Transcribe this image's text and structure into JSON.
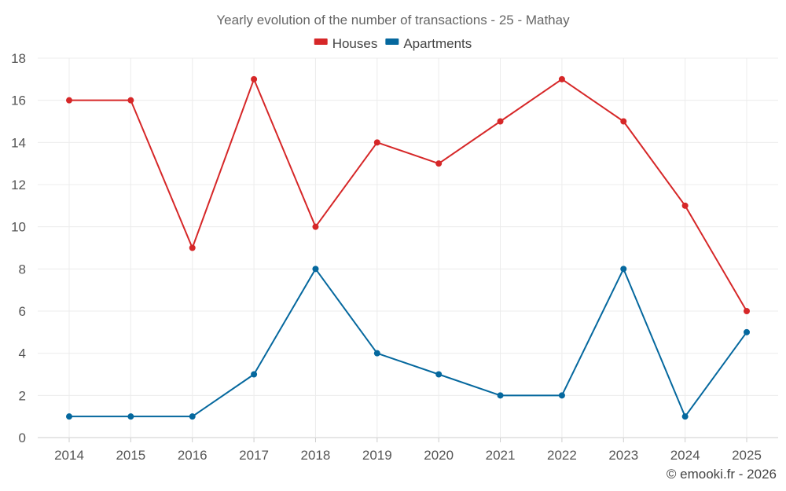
{
  "chart_data": {
    "type": "line",
    "title": "Yearly evolution of the number of transactions - 25 - Mathay",
    "categories": [
      "2014",
      "2015",
      "2016",
      "2017",
      "2018",
      "2019",
      "2020",
      "2021",
      "2022",
      "2023",
      "2024",
      "2025"
    ],
    "series": [
      {
        "name": "Houses",
        "color": "#d62728",
        "values": [
          16,
          16,
          9,
          17,
          10,
          14,
          13,
          15,
          17,
          15,
          11,
          6
        ]
      },
      {
        "name": "Apartments",
        "color": "#05689e",
        "values": [
          1,
          1,
          1,
          3,
          8,
          4,
          3,
          2,
          2,
          8,
          1,
          5
        ]
      }
    ],
    "ylim": [
      0,
      18
    ],
    "yticks": [
      0,
      2,
      4,
      6,
      8,
      10,
      12,
      14,
      16,
      18
    ],
    "grid": true,
    "legend": "top-center",
    "xlabel": "",
    "ylabel": ""
  },
  "footer": {
    "copyright": "© emooki.fr - 2026"
  }
}
